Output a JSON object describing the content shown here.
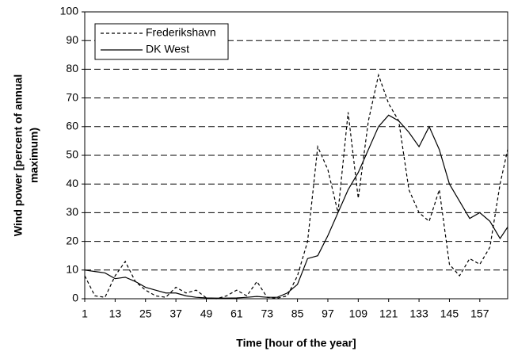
{
  "chart_data": {
    "type": "line",
    "x_label": "Time [hour of the year]",
    "y_label": [
      "Wind power [percent of annual",
      "maximum)"
    ],
    "x": [
      1,
      5,
      9,
      13,
      17,
      21,
      25,
      29,
      33,
      37,
      41,
      45,
      49,
      53,
      57,
      61,
      65,
      69,
      73,
      77,
      81,
      85,
      89,
      93,
      97,
      101,
      105,
      109,
      113,
      117,
      121,
      125,
      129,
      133,
      137,
      141,
      145,
      149,
      153,
      157,
      161,
      165,
      168
    ],
    "series": [
      {
        "name": "Frederikshavn",
        "color": "#000000",
        "dash": true,
        "values": [
          8,
          1,
          0.5,
          8,
          13,
          6,
          3,
          1,
          0.5,
          4,
          2,
          3,
          0.3,
          0,
          1,
          3,
          1,
          6,
          0.5,
          0.2,
          1,
          8,
          20,
          53,
          45,
          30,
          65,
          35,
          62,
          78,
          68,
          62,
          38,
          30,
          27,
          38,
          12,
          8,
          14,
          12,
          18,
          40,
          52
        ]
      },
      {
        "name": "DK West",
        "color": "#000000",
        "dash": false,
        "values": [
          10,
          9.5,
          9,
          7,
          7.5,
          6,
          4,
          3,
          2,
          2,
          1,
          0.5,
          0.3,
          0.2,
          0.2,
          0.3,
          0.5,
          0.8,
          0.5,
          0.5,
          2,
          5,
          14,
          15,
          22,
          30,
          38,
          44,
          52,
          60,
          64,
          62,
          58,
          53,
          60,
          52,
          40,
          34,
          28,
          30,
          27,
          21,
          25
        ]
      }
    ],
    "xlim": [
      1,
      168
    ],
    "xticks": [
      1,
      13,
      25,
      37,
      49,
      61,
      73,
      85,
      97,
      109,
      121,
      133,
      145,
      157
    ],
    "ylim": [
      0,
      100
    ],
    "yticks": [
      0,
      10,
      20,
      30,
      40,
      50,
      60,
      70,
      80,
      90,
      100
    ],
    "grid": true,
    "legend": "upper left"
  }
}
